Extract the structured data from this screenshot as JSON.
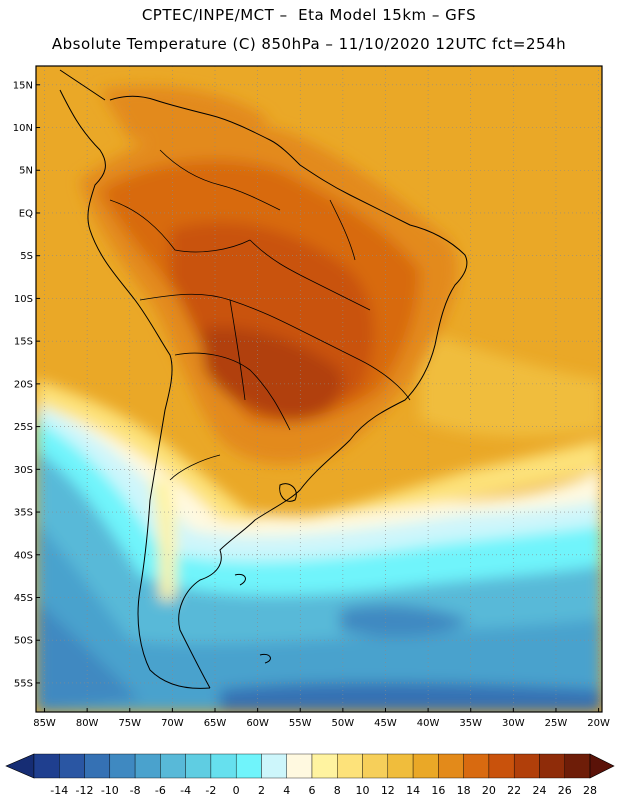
{
  "title_line1": "CPTEC/INPE/MCT –  Eta Model 15km – GFS",
  "title_line2": "Absolute Temperature (C) 850hPa – 11/10/2020 12UTC fct=254h",
  "map": {
    "lat_labels": [
      "15N",
      "10N",
      "5N",
      "EQ",
      "5S",
      "10S",
      "15S",
      "20S",
      "25S",
      "30S",
      "35S",
      "40S",
      "45S",
      "50S",
      "55S"
    ],
    "lon_labels": [
      "85W",
      "80W",
      "75W",
      "70W",
      "65W",
      "60W",
      "55W",
      "50W",
      "45W",
      "40W",
      "35W",
      "30W",
      "25W",
      "20W"
    ],
    "lat_values": [
      15,
      10,
      5,
      0,
      -5,
      -10,
      -15,
      -20,
      -25,
      -30,
      -35,
      -40,
      -45,
      -50,
      -55
    ],
    "lon_values": [
      -85,
      -80,
      -75,
      -70,
      -65,
      -60,
      -55,
      -50,
      -45,
      -40,
      -35,
      -30,
      -25,
      -20
    ]
  },
  "colorbar": {
    "labels": [
      "-14",
      "-12",
      "-10",
      "-8",
      "-6",
      "-4",
      "-2",
      "0",
      "2",
      "4",
      "6",
      "8",
      "10",
      "12",
      "14",
      "16",
      "18",
      "20",
      "22",
      "24",
      "26",
      "28"
    ],
    "colors": [
      "#1f3f8f",
      "#2a56a3",
      "#3571b4",
      "#3f89c1",
      "#4aa2cd",
      "#58b9d8",
      "#5fcde2",
      "#66e0ee",
      "#70f4fb",
      "#cdf6fb",
      "#fff9e0",
      "#fff3a0",
      "#fde27a",
      "#f6cf5a",
      "#f0bd3c",
      "#eaa827",
      "#e38a1a",
      "#d86a10",
      "#c9520c",
      "#b13f0a",
      "#8f2c09",
      "#6e1d08"
    ],
    "under_color": "#162d74",
    "over_color": "#5a1208"
  }
}
